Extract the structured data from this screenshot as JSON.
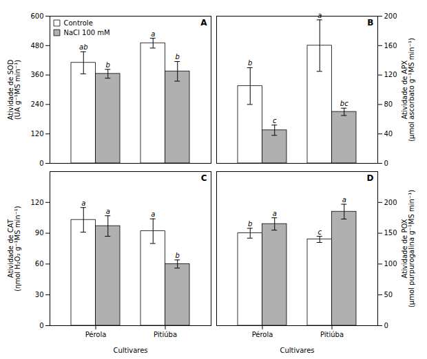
{
  "chart_data": [
    {
      "type": "bar",
      "title": "A",
      "categories": [
        "Pérola",
        "Pitiúba"
      ],
      "ylabel": "Atividade de SOD\n(UA g⁻¹MS min⁻¹)",
      "ylim": [
        0,
        600
      ],
      "yticks": [
        0,
        120,
        240,
        360,
        480,
        600
      ],
      "tick_labels": "y",
      "legend": "upper left",
      "series": [
        {
          "name": "Controle",
          "color": "white",
          "values": [
            410,
            490
          ],
          "errors": [
            45,
            20
          ],
          "letters": [
            "ab",
            "a"
          ]
        },
        {
          "name": "NaCl 100 mM",
          "color": "#b0b0b0",
          "values": [
            365,
            375
          ],
          "errors": [
            18,
            40
          ],
          "letters": [
            "b",
            "b"
          ]
        }
      ]
    },
    {
      "type": "bar",
      "title": "B",
      "categories": [
        "Pérola",
        "Pitiúba"
      ],
      "ylabel": "Atividade de APX\n(μmol ascorbato g⁻¹MS min⁻¹)",
      "ylim": [
        0,
        200
      ],
      "yticks": [
        0,
        40,
        80,
        120,
        160,
        200
      ],
      "tick_labels": "y",
      "series": [
        {
          "name": "Controle",
          "color": "white",
          "values": [
            105,
            160
          ],
          "errors": [
            25,
            35
          ],
          "letters": [
            "b",
            "a"
          ]
        },
        {
          "name": "NaCl 100 mM",
          "color": "#b0b0b0",
          "values": [
            45,
            70
          ],
          "errors": [
            7,
            5
          ],
          "letters": [
            "c",
            "bc"
          ]
        }
      ]
    },
    {
      "type": "bar",
      "title": "C",
      "categories": [
        "Pérola",
        "Pitiúba"
      ],
      "xlabel": "Cultivares",
      "ylabel": "Atividade de CAT\n(ηmol H₂O₂ g⁻¹MS min⁻¹)",
      "ylim": [
        0,
        150
      ],
      "yticks": [
        0,
        30,
        60,
        90,
        120
      ],
      "series": [
        {
          "name": "Controle",
          "color": "white",
          "values": [
            103,
            92
          ],
          "errors": [
            12,
            12
          ],
          "letters": [
            "a",
            "a"
          ]
        },
        {
          "name": "NaCl 100 mM",
          "color": "#b0b0b0",
          "values": [
            97,
            60
          ],
          "errors": [
            10,
            4
          ],
          "letters": [
            "a",
            "b"
          ]
        }
      ]
    },
    {
      "type": "bar",
      "title": "D",
      "categories": [
        "Pérola",
        "Pitiúba"
      ],
      "xlabel": "Cultivares",
      "ylabel": "Atividade de POX\n(μmol purpurogalina g⁻¹MS min⁻¹)",
      "ylim": [
        0,
        250
      ],
      "yticks": [
        0,
        50,
        100,
        150,
        200
      ],
      "series": [
        {
          "name": "Controle",
          "color": "white",
          "values": [
            150,
            140
          ],
          "errors": [
            8,
            5
          ],
          "letters": [
            "b",
            "c"
          ]
        },
        {
          "name": "NaCl 100 mM",
          "color": "#b0b0b0",
          "values": [
            165,
            185
          ],
          "errors": [
            10,
            12
          ],
          "letters": [
            "a",
            "a"
          ]
        }
      ]
    }
  ]
}
